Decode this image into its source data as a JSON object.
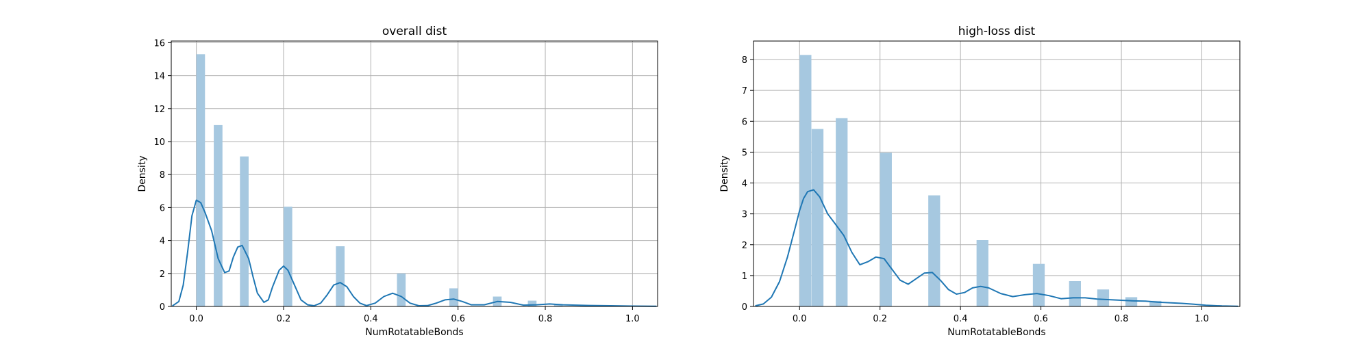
{
  "chart_data": [
    {
      "type": "bar",
      "title": "overall dist",
      "xlabel": "NumRotatableBonds",
      "ylabel": "Density",
      "xlim": [
        -0.0575,
        1.0575
      ],
      "ylim": [
        0,
        16.1
      ],
      "xticks": [
        0.0,
        0.2,
        0.4,
        0.6,
        0.8,
        1.0
      ],
      "xtick_labels": [
        "0.0",
        "0.2",
        "0.4",
        "0.6",
        "0.8",
        "1.0"
      ],
      "yticks": [
        0,
        2,
        4,
        6,
        8,
        10,
        12,
        14,
        16
      ],
      "ytick_labels": [
        "0",
        "2",
        "4",
        "6",
        "8",
        "10",
        "12",
        "14",
        "16"
      ],
      "grid": true,
      "colors": {
        "bars": "#a6c8e0",
        "kde": "#1f77b4"
      },
      "histogram": {
        "bin_width": 0.0199,
        "bins": [
          {
            "x": 0.0,
            "density": 15.3
          },
          {
            "x": 0.04,
            "density": 11.0
          },
          {
            "x": 0.1,
            "density": 9.1
          },
          {
            "x": 0.2,
            "density": 6.05
          },
          {
            "x": 0.32,
            "density": 3.65
          },
          {
            "x": 0.46,
            "density": 2.0
          },
          {
            "x": 0.58,
            "density": 1.1
          },
          {
            "x": 0.68,
            "density": 0.6
          },
          {
            "x": 0.76,
            "density": 0.35
          },
          {
            "x": 0.82,
            "density": 0.15
          },
          {
            "x": 0.88,
            "density": 0.08
          },
          {
            "x": 0.94,
            "density": 0.05
          }
        ]
      },
      "kde": {
        "x": [
          -0.055,
          -0.04,
          -0.03,
          -0.02,
          -0.01,
          0.0,
          0.01,
          0.02,
          0.035,
          0.05,
          0.065,
          0.075,
          0.085,
          0.095,
          0.105,
          0.12,
          0.13,
          0.14,
          0.155,
          0.165,
          0.175,
          0.19,
          0.2,
          0.21,
          0.225,
          0.24,
          0.255,
          0.27,
          0.285,
          0.3,
          0.315,
          0.33,
          0.345,
          0.36,
          0.375,
          0.39,
          0.41,
          0.43,
          0.45,
          0.47,
          0.49,
          0.51,
          0.53,
          0.55,
          0.57,
          0.59,
          0.61,
          0.63,
          0.66,
          0.69,
          0.72,
          0.75,
          0.78,
          0.81,
          0.84,
          0.87,
          0.9,
          0.95,
          1.0,
          1.055
        ],
        "y": [
          0.03,
          0.3,
          1.3,
          3.3,
          5.5,
          6.45,
          6.3,
          5.7,
          4.6,
          2.9,
          2.05,
          2.15,
          3.0,
          3.6,
          3.7,
          2.9,
          1.8,
          0.8,
          0.25,
          0.4,
          1.2,
          2.2,
          2.45,
          2.2,
          1.3,
          0.4,
          0.1,
          0.04,
          0.2,
          0.7,
          1.3,
          1.45,
          1.2,
          0.6,
          0.2,
          0.05,
          0.2,
          0.6,
          0.8,
          0.6,
          0.2,
          0.04,
          0.05,
          0.2,
          0.4,
          0.45,
          0.3,
          0.1,
          0.1,
          0.3,
          0.25,
          0.08,
          0.1,
          0.15,
          0.1,
          0.08,
          0.06,
          0.04,
          0.02,
          0.01
        ]
      }
    },
    {
      "type": "bar",
      "title": "high-loss dist",
      "xlabel": "NumRotatableBonds",
      "ylabel": "Density",
      "xlim": [
        -0.1145,
        1.0945
      ],
      "ylim": [
        0,
        8.6
      ],
      "xticks": [
        0.0,
        0.2,
        0.4,
        0.6,
        0.8,
        1.0
      ],
      "xtick_labels": [
        "0.0",
        "0.2",
        "0.4",
        "0.6",
        "0.8",
        "1.0"
      ],
      "yticks": [
        0,
        1,
        2,
        3,
        4,
        5,
        6,
        7,
        8
      ],
      "ytick_labels": [
        "0",
        "1",
        "2",
        "3",
        "4",
        "5",
        "6",
        "7",
        "8"
      ],
      "grid": true,
      "colors": {
        "bars": "#a6c8e0",
        "kde": "#1f77b4"
      },
      "histogram": {
        "bin_width": 0.0294,
        "bins": [
          {
            "x": 0.0,
            "density": 8.15
          },
          {
            "x": 0.03,
            "density": 5.75
          },
          {
            "x": 0.09,
            "density": 6.1
          },
          {
            "x": 0.2,
            "density": 4.98
          },
          {
            "x": 0.32,
            "density": 3.6
          },
          {
            "x": 0.44,
            "density": 2.15
          },
          {
            "x": 0.58,
            "density": 1.38
          },
          {
            "x": 0.67,
            "density": 0.82
          },
          {
            "x": 0.74,
            "density": 0.55
          },
          {
            "x": 0.81,
            "density": 0.3
          },
          {
            "x": 0.87,
            "density": 0.18
          }
        ]
      },
      "kde": {
        "x": [
          -0.11,
          -0.09,
          -0.07,
          -0.05,
          -0.03,
          -0.01,
          0.0,
          0.01,
          0.02,
          0.035,
          0.05,
          0.07,
          0.09,
          0.11,
          0.13,
          0.15,
          0.17,
          0.19,
          0.21,
          0.23,
          0.25,
          0.27,
          0.29,
          0.31,
          0.33,
          0.35,
          0.37,
          0.39,
          0.41,
          0.43,
          0.45,
          0.47,
          0.5,
          0.53,
          0.56,
          0.59,
          0.62,
          0.65,
          0.68,
          0.71,
          0.74,
          0.77,
          0.8,
          0.83,
          0.86,
          0.89,
          0.92,
          0.95,
          0.98,
          1.01,
          1.05,
          1.09
        ],
        "y": [
          0.02,
          0.08,
          0.3,
          0.8,
          1.6,
          2.6,
          3.1,
          3.5,
          3.72,
          3.78,
          3.55,
          3.0,
          2.65,
          2.3,
          1.75,
          1.35,
          1.45,
          1.6,
          1.55,
          1.2,
          0.85,
          0.72,
          0.9,
          1.08,
          1.1,
          0.85,
          0.55,
          0.4,
          0.45,
          0.6,
          0.65,
          0.6,
          0.42,
          0.32,
          0.38,
          0.42,
          0.35,
          0.25,
          0.28,
          0.28,
          0.24,
          0.22,
          0.2,
          0.18,
          0.17,
          0.14,
          0.12,
          0.1,
          0.07,
          0.04,
          0.015,
          0.005
        ]
      }
    }
  ]
}
